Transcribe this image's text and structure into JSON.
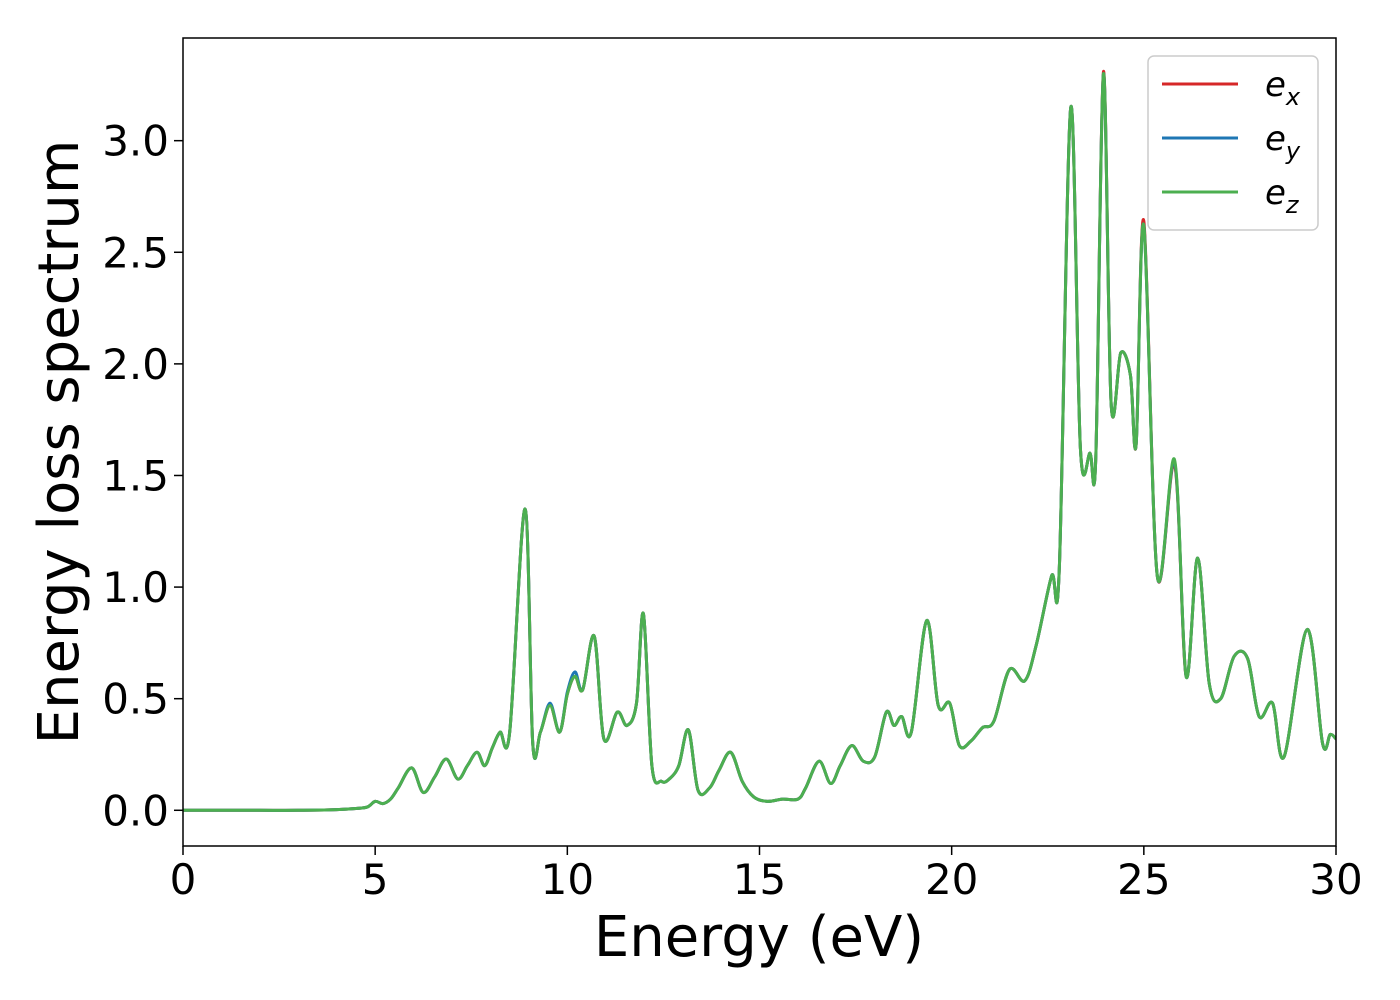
{
  "chart_data": {
    "type": "line",
    "title": "",
    "xlabel": "Energy (eV)",
    "ylabel": "Energy loss spectrum",
    "xlim": [
      0,
      30
    ],
    "ylim": [
      -0.16,
      3.46
    ],
    "xticks": [
      0,
      5,
      10,
      15,
      20,
      25,
      30
    ],
    "yticks": [
      0.0,
      0.5,
      1.0,
      1.5,
      2.0,
      2.5,
      3.0
    ],
    "grid": false,
    "legend_position": "top-right",
    "series": [
      {
        "name": "e",
        "sub": "x",
        "color": "#d62728"
      },
      {
        "name": "e",
        "sub": "y",
        "color": "#1f77b4"
      },
      {
        "name": "e",
        "sub": "z",
        "color": "#4caf50"
      }
    ],
    "x": [
      0,
      1,
      2,
      3,
      4,
      4.5,
      4.8,
      5.0,
      5.2,
      5.4,
      5.6,
      5.95,
      6.25,
      6.55,
      6.85,
      7.15,
      7.4,
      7.65,
      7.85,
      8.05,
      8.25,
      8.5,
      8.9,
      9.1,
      9.3,
      9.55,
      9.8,
      10.0,
      10.2,
      10.4,
      10.7,
      10.95,
      11.3,
      11.55,
      11.8,
      11.98,
      12.2,
      12.45,
      12.65,
      12.9,
      13.15,
      13.4,
      13.7,
      13.95,
      14.25,
      14.55,
      14.85,
      15.2,
      15.6,
      16.0,
      16.2,
      16.55,
      16.85,
      17.1,
      17.4,
      17.7,
      18.0,
      18.3,
      18.5,
      18.7,
      18.95,
      19.35,
      19.65,
      19.95,
      20.2,
      20.5,
      20.8,
      21.1,
      21.5,
      21.9,
      22.2,
      22.6,
      22.8,
      23.1,
      23.35,
      23.6,
      23.75,
      23.95,
      24.15,
      24.4,
      24.65,
      24.8,
      25.0,
      25.35,
      25.8,
      26.1,
      26.4,
      26.7,
      27.0,
      27.35,
      27.7,
      28.0,
      28.35,
      28.65,
      29.25,
      29.65,
      29.85,
      30.0
    ],
    "y_ex": [
      0,
      0,
      0,
      0,
      0.003,
      0.008,
      0.015,
      0.04,
      0.03,
      0.05,
      0.1,
      0.19,
      0.08,
      0.15,
      0.23,
      0.14,
      0.2,
      0.26,
      0.2,
      0.28,
      0.35,
      0.35,
      1.35,
      0.3,
      0.35,
      0.47,
      0.35,
      0.52,
      0.6,
      0.54,
      0.78,
      0.32,
      0.44,
      0.38,
      0.48,
      0.88,
      0.2,
      0.13,
      0.14,
      0.2,
      0.36,
      0.09,
      0.1,
      0.18,
      0.26,
      0.13,
      0.06,
      0.04,
      0.05,
      0.05,
      0.1,
      0.22,
      0.12,
      0.2,
      0.29,
      0.22,
      0.24,
      0.44,
      0.38,
      0.42,
      0.35,
      0.85,
      0.47,
      0.48,
      0.29,
      0.31,
      0.37,
      0.4,
      0.63,
      0.58,
      0.74,
      1.05,
      1.08,
      3.15,
      1.62,
      1.6,
      1.58,
      3.31,
      1.82,
      2.05,
      1.95,
      1.64,
      2.64,
      1.05,
      1.55,
      0.6,
      1.13,
      0.57,
      0.5,
      0.69,
      0.68,
      0.42,
      0.48,
      0.24,
      0.81,
      0.3,
      0.34,
      0.32
    ],
    "y_ey": [
      0,
      0,
      0,
      0,
      0.003,
      0.008,
      0.015,
      0.04,
      0.03,
      0.05,
      0.1,
      0.19,
      0.08,
      0.15,
      0.23,
      0.14,
      0.2,
      0.26,
      0.2,
      0.28,
      0.35,
      0.35,
      1.35,
      0.3,
      0.35,
      0.48,
      0.35,
      0.53,
      0.62,
      0.54,
      0.78,
      0.32,
      0.44,
      0.38,
      0.48,
      0.88,
      0.2,
      0.13,
      0.14,
      0.2,
      0.36,
      0.09,
      0.1,
      0.18,
      0.26,
      0.13,
      0.06,
      0.04,
      0.05,
      0.05,
      0.1,
      0.22,
      0.12,
      0.2,
      0.29,
      0.22,
      0.24,
      0.44,
      0.38,
      0.42,
      0.35,
      0.85,
      0.47,
      0.48,
      0.29,
      0.31,
      0.37,
      0.4,
      0.63,
      0.58,
      0.74,
      1.05,
      1.08,
      3.15,
      1.62,
      1.6,
      1.58,
      3.3,
      1.82,
      2.05,
      1.95,
      1.64,
      2.62,
      1.05,
      1.56,
      0.6,
      1.13,
      0.57,
      0.5,
      0.69,
      0.68,
      0.42,
      0.48,
      0.24,
      0.81,
      0.3,
      0.34,
      0.32
    ],
    "y_ez": [
      0,
      0,
      0,
      0,
      0.003,
      0.008,
      0.015,
      0.04,
      0.03,
      0.05,
      0.1,
      0.19,
      0.08,
      0.15,
      0.23,
      0.14,
      0.2,
      0.26,
      0.2,
      0.28,
      0.35,
      0.35,
      1.35,
      0.3,
      0.35,
      0.47,
      0.35,
      0.52,
      0.6,
      0.54,
      0.78,
      0.32,
      0.44,
      0.38,
      0.48,
      0.88,
      0.2,
      0.13,
      0.14,
      0.2,
      0.36,
      0.09,
      0.1,
      0.18,
      0.26,
      0.13,
      0.06,
      0.04,
      0.05,
      0.05,
      0.1,
      0.22,
      0.12,
      0.2,
      0.29,
      0.22,
      0.24,
      0.44,
      0.38,
      0.42,
      0.35,
      0.85,
      0.47,
      0.48,
      0.29,
      0.31,
      0.37,
      0.4,
      0.63,
      0.58,
      0.74,
      1.05,
      1.08,
      3.15,
      1.62,
      1.6,
      1.58,
      3.3,
      1.82,
      2.05,
      1.95,
      1.64,
      2.62,
      1.05,
      1.57,
      0.6,
      1.13,
      0.57,
      0.5,
      0.69,
      0.68,
      0.42,
      0.48,
      0.24,
      0.81,
      0.3,
      0.34,
      0.32
    ]
  }
}
